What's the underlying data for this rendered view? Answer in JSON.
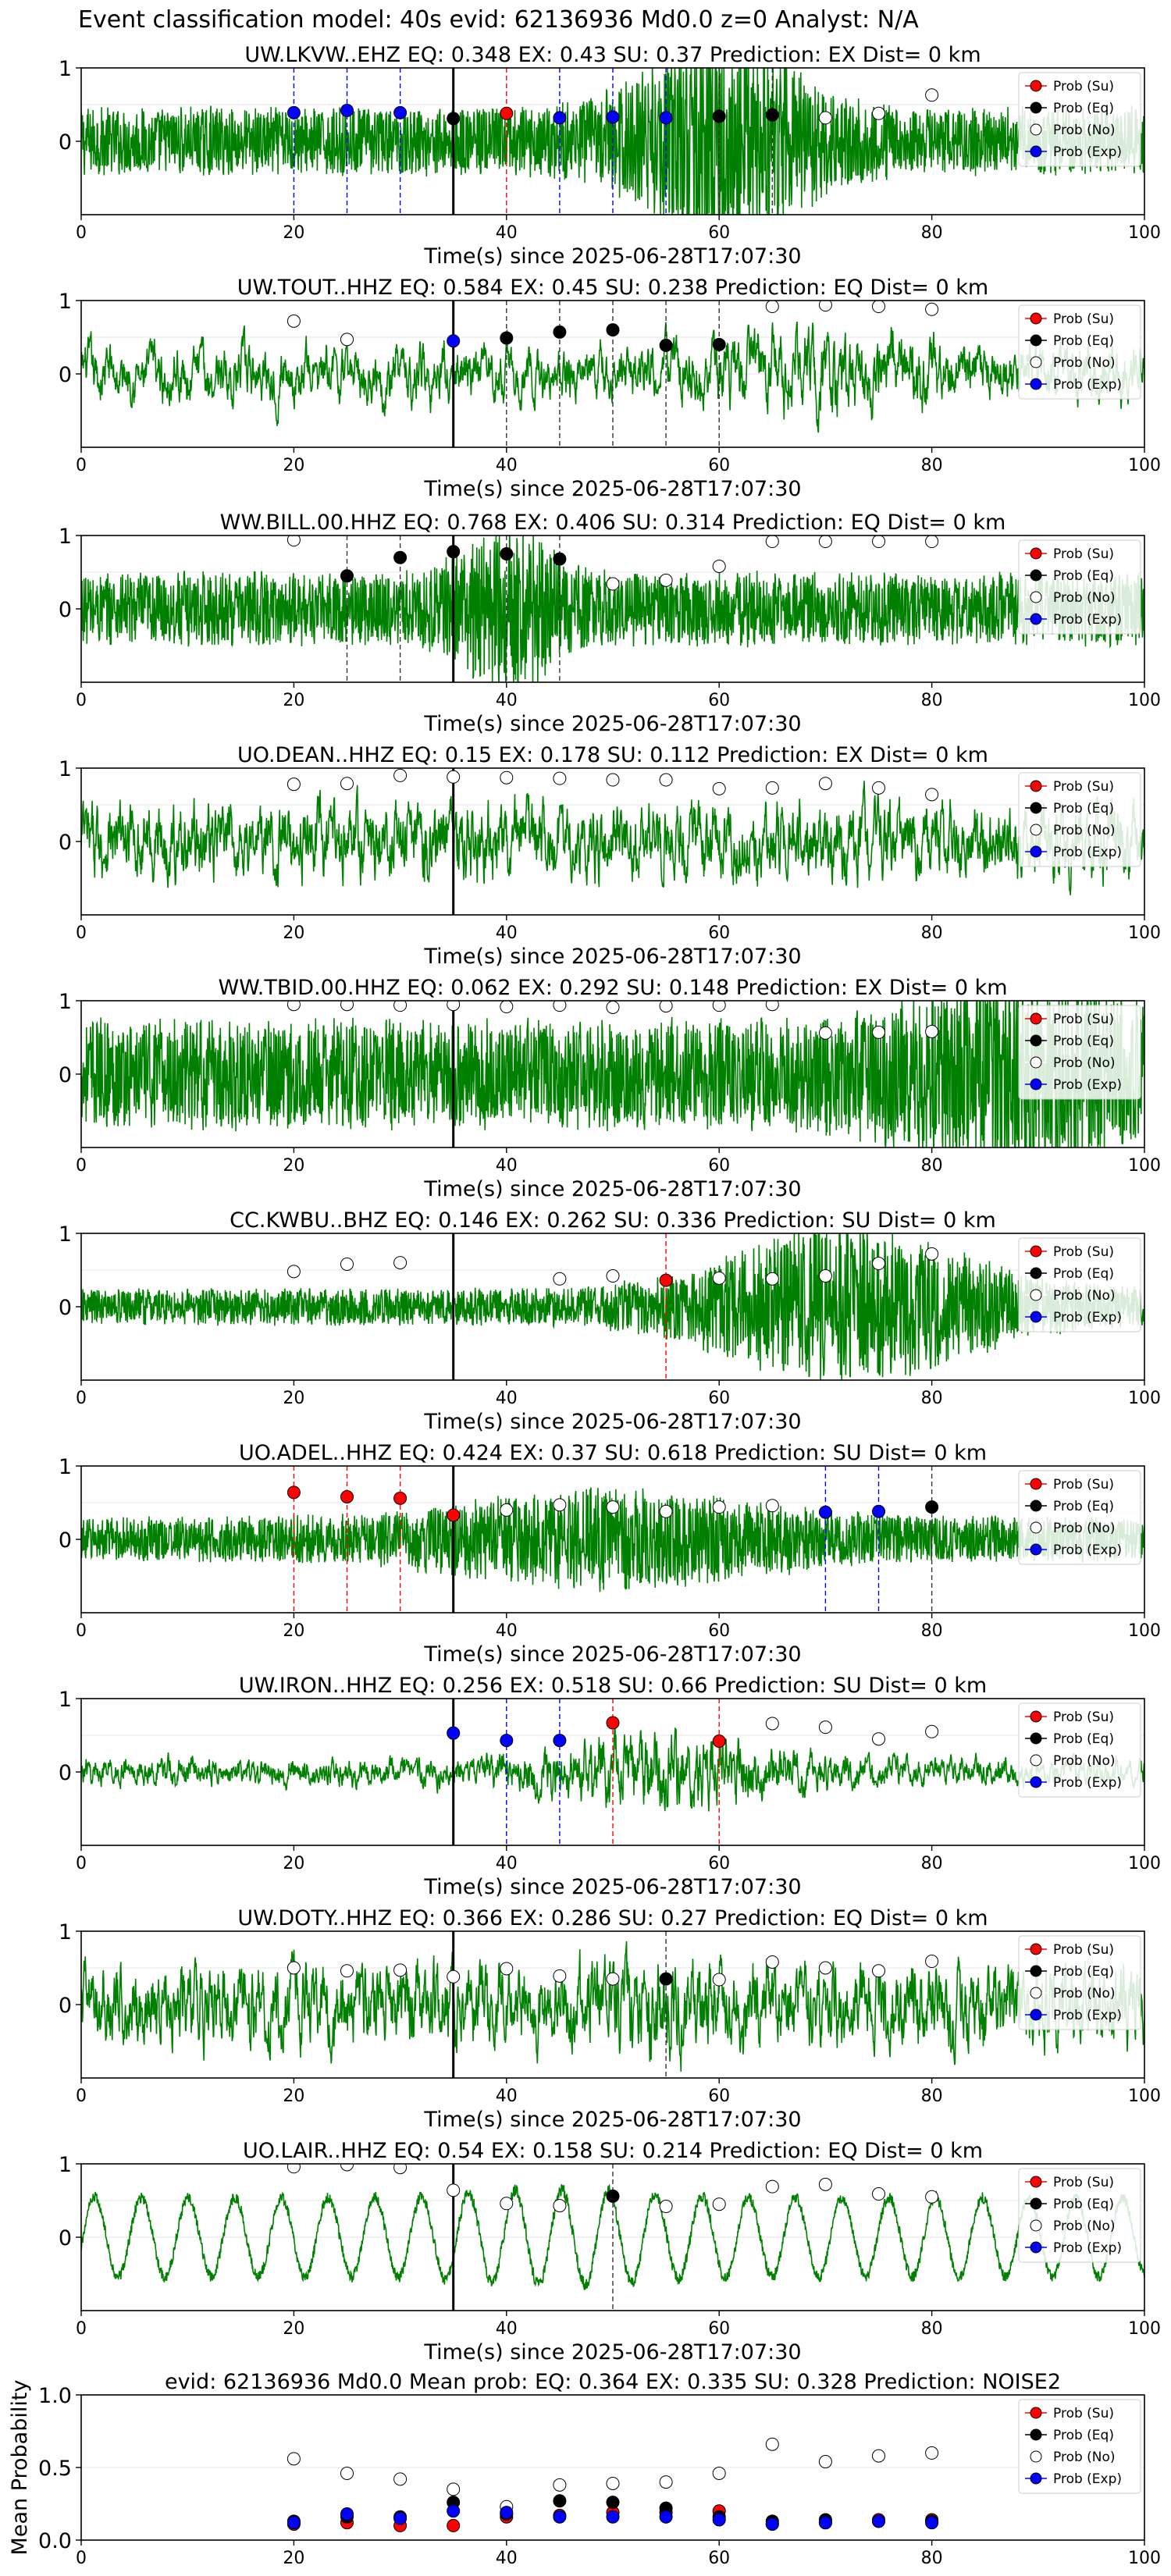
{
  "figure": {
    "suptitle": "Event classification model: 40s evid: 62136936 Md0.0 z=0 Analyst: N/A"
  },
  "colors": {
    "waveform": "#008000",
    "su": "#ff0000",
    "eq": "#000000",
    "no": "#ffffff",
    "exp": "#0000ff",
    "pick_line": "#000000"
  },
  "legend": {
    "placement": "right",
    "entries": [
      "Prob (Su)",
      "Prob (Eq)",
      "Prob (No)",
      "Prob (Exp)"
    ]
  },
  "chart_data": [
    {
      "type": "line",
      "title": "UW.LKVW..EHZ   EQ: 0.348   EX: 0.43   SU: 0.37   Prediction: EX    Dist= 0 km",
      "xlabel": "Time(s) since 2025-06-28T17:07:30",
      "ylabel": "",
      "xlim": [
        0,
        100
      ],
      "ylim": [
        -1,
        1
      ],
      "xticks": [
        "0",
        "20",
        "40",
        "60",
        "80",
        "100"
      ],
      "yticks": [
        "0",
        "1"
      ],
      "pick_time": 35,
      "waveform": {
        "amp": 0.28,
        "freq": 45,
        "burst_center": 60,
        "burst_width": 9,
        "burst_gain": 3.2,
        "smooth": 1
      },
      "probs": [
        {
          "t": 20,
          "v": 0.39,
          "cls": "exp"
        },
        {
          "t": 25,
          "v": 0.42,
          "cls": "exp"
        },
        {
          "t": 30,
          "v": 0.39,
          "cls": "exp"
        },
        {
          "t": 35,
          "v": 0.31,
          "cls": "eq"
        },
        {
          "t": 40,
          "v": 0.38,
          "cls": "su"
        },
        {
          "t": 45,
          "v": 0.32,
          "cls": "exp"
        },
        {
          "t": 50,
          "v": 0.33,
          "cls": "exp"
        },
        {
          "t": 55,
          "v": 0.32,
          "cls": "exp"
        },
        {
          "t": 60,
          "v": 0.34,
          "cls": "eq"
        },
        {
          "t": 65,
          "v": 0.36,
          "cls": "eq"
        },
        {
          "t": 70,
          "v": 0.32,
          "cls": "no"
        },
        {
          "t": 75,
          "v": 0.38,
          "cls": "no"
        },
        {
          "t": 80,
          "v": 0.63,
          "cls": "no"
        }
      ]
    },
    {
      "type": "line",
      "title": "UW.TOUT..HHZ   EQ: 0.584   EX: 0.45   SU: 0.238   Prediction: EQ    Dist= 0 km",
      "xlabel": "Time(s) since 2025-06-28T17:07:30",
      "ylabel": "",
      "xlim": [
        0,
        100
      ],
      "ylim": [
        -1,
        1
      ],
      "xticks": [
        "0",
        "20",
        "40",
        "60",
        "80",
        "100"
      ],
      "yticks": [
        "0",
        "1"
      ],
      "pick_time": 35,
      "waveform": {
        "amp": 0.55,
        "freq": 10,
        "burst_center": 70,
        "burst_width": 10,
        "burst_gain": 1.6,
        "smooth": 4
      },
      "probs": [
        {
          "t": 20,
          "v": 0.72,
          "cls": "no"
        },
        {
          "t": 25,
          "v": 0.47,
          "cls": "no"
        },
        {
          "t": 35,
          "v": 0.45,
          "cls": "exp"
        },
        {
          "t": 40,
          "v": 0.49,
          "cls": "eq"
        },
        {
          "t": 45,
          "v": 0.57,
          "cls": "eq"
        },
        {
          "t": 50,
          "v": 0.6,
          "cls": "eq"
        },
        {
          "t": 55,
          "v": 0.39,
          "cls": "eq"
        },
        {
          "t": 60,
          "v": 0.4,
          "cls": "eq"
        },
        {
          "t": 65,
          "v": 0.92,
          "cls": "no"
        },
        {
          "t": 70,
          "v": 0.94,
          "cls": "no"
        },
        {
          "t": 75,
          "v": 0.92,
          "cls": "no"
        },
        {
          "t": 80,
          "v": 0.88,
          "cls": "no"
        }
      ]
    },
    {
      "type": "line",
      "title": "WW.BILL.00.HHZ   EQ: 0.768   EX: 0.406   SU: 0.314   Prediction: EQ    Dist= 0 km",
      "xlabel": "Time(s) since 2025-06-28T17:07:30",
      "ylabel": "",
      "xlim": [
        0,
        100
      ],
      "ylim": [
        -1,
        1
      ],
      "xticks": [
        "0",
        "20",
        "40",
        "60",
        "80",
        "100"
      ],
      "yticks": [
        "0",
        "1"
      ],
      "pick_time": 35,
      "waveform": {
        "amp": 0.3,
        "freq": 35,
        "burst_center": 40,
        "burst_width": 5,
        "burst_gain": 2.4,
        "smooth": 1
      },
      "probs": [
        {
          "t": 20,
          "v": 0.94,
          "cls": "no"
        },
        {
          "t": 25,
          "v": 0.45,
          "cls": "eq"
        },
        {
          "t": 30,
          "v": 0.7,
          "cls": "eq"
        },
        {
          "t": 35,
          "v": 0.78,
          "cls": "eq"
        },
        {
          "t": 40,
          "v": 0.75,
          "cls": "eq"
        },
        {
          "t": 45,
          "v": 0.68,
          "cls": "eq"
        },
        {
          "t": 50,
          "v": 0.34,
          "cls": "no"
        },
        {
          "t": 55,
          "v": 0.39,
          "cls": "no"
        },
        {
          "t": 60,
          "v": 0.58,
          "cls": "no"
        },
        {
          "t": 65,
          "v": 0.92,
          "cls": "no"
        },
        {
          "t": 70,
          "v": 0.92,
          "cls": "no"
        },
        {
          "t": 75,
          "v": 0.92,
          "cls": "no"
        },
        {
          "t": 80,
          "v": 0.92,
          "cls": "no"
        }
      ]
    },
    {
      "type": "line",
      "title": "UO.DEAN..HHZ   EQ: 0.15   EX: 0.178   SU: 0.112   Prediction: EX    Dist= 0 km",
      "xlabel": "Time(s) since 2025-06-28T17:07:30",
      "ylabel": "",
      "xlim": [
        0,
        100
      ],
      "ylim": [
        -1,
        1
      ],
      "xticks": [
        "0",
        "20",
        "40",
        "60",
        "80",
        "100"
      ],
      "yticks": [
        "0",
        "1"
      ],
      "pick_time": 35,
      "waveform": {
        "amp": 0.6,
        "freq": 18,
        "burst_center": 35,
        "burst_width": 4,
        "burst_gain": 1.3,
        "smooth": 3
      },
      "probs": [
        {
          "t": 20,
          "v": 0.78,
          "cls": "no"
        },
        {
          "t": 25,
          "v": 0.79,
          "cls": "no"
        },
        {
          "t": 30,
          "v": 0.9,
          "cls": "no"
        },
        {
          "t": 35,
          "v": 0.88,
          "cls": "no"
        },
        {
          "t": 40,
          "v": 0.87,
          "cls": "no"
        },
        {
          "t": 45,
          "v": 0.86,
          "cls": "no"
        },
        {
          "t": 50,
          "v": 0.84,
          "cls": "no"
        },
        {
          "t": 55,
          "v": 0.84,
          "cls": "no"
        },
        {
          "t": 60,
          "v": 0.72,
          "cls": "no"
        },
        {
          "t": 65,
          "v": 0.73,
          "cls": "no"
        },
        {
          "t": 70,
          "v": 0.79,
          "cls": "no"
        },
        {
          "t": 75,
          "v": 0.73,
          "cls": "no"
        },
        {
          "t": 80,
          "v": 0.64,
          "cls": "no"
        }
      ]
    },
    {
      "type": "line",
      "title": "WW.TBID.00.HHZ   EQ: 0.062   EX: 0.292   SU: 0.148   Prediction: EX    Dist= 0 km",
      "xlabel": "Time(s) since 2025-06-28T17:07:30",
      "ylabel": "",
      "xlim": [
        0,
        100
      ],
      "ylim": [
        -1,
        1
      ],
      "xticks": [
        "0",
        "20",
        "40",
        "60",
        "80",
        "100"
      ],
      "yticks": [
        "0",
        "1"
      ],
      "pick_time": 35,
      "waveform": {
        "amp": 0.45,
        "freq": 60,
        "burst_center": 88,
        "burst_width": 12,
        "burst_gain": 1.9,
        "smooth": 1
      },
      "probs": [
        {
          "t": 20,
          "v": 0.95,
          "cls": "no"
        },
        {
          "t": 25,
          "v": 0.95,
          "cls": "no"
        },
        {
          "t": 30,
          "v": 0.94,
          "cls": "no"
        },
        {
          "t": 35,
          "v": 0.95,
          "cls": "no"
        },
        {
          "t": 40,
          "v": 0.92,
          "cls": "no"
        },
        {
          "t": 45,
          "v": 0.94,
          "cls": "no"
        },
        {
          "t": 50,
          "v": 0.91,
          "cls": "no"
        },
        {
          "t": 55,
          "v": 0.93,
          "cls": "no"
        },
        {
          "t": 60,
          "v": 0.94,
          "cls": "no"
        },
        {
          "t": 65,
          "v": 0.95,
          "cls": "no"
        },
        {
          "t": 70,
          "v": 0.56,
          "cls": "no"
        },
        {
          "t": 75,
          "v": 0.57,
          "cls": "no"
        },
        {
          "t": 80,
          "v": 0.58,
          "cls": "no"
        }
      ]
    },
    {
      "type": "line",
      "title": "CC.KWBU..BHZ   EQ: 0.146   EX: 0.262   SU: 0.336   Prediction: SU    Dist= 0 km",
      "xlabel": "Time(s) since 2025-06-28T17:07:30",
      "ylabel": "",
      "xlim": [
        0,
        100
      ],
      "ylim": [
        -1,
        1
      ],
      "xticks": [
        "0",
        "20",
        "40",
        "60",
        "80",
        "100"
      ],
      "yticks": [
        "0",
        "1"
      ],
      "pick_time": 35,
      "waveform": {
        "amp": 0.15,
        "freq": 55,
        "burst_center": 72,
        "burst_width": 14,
        "burst_gain": 4.5,
        "smooth": 1
      },
      "probs": [
        {
          "t": 20,
          "v": 0.48,
          "cls": "no"
        },
        {
          "t": 25,
          "v": 0.58,
          "cls": "no"
        },
        {
          "t": 30,
          "v": 0.6,
          "cls": "no"
        },
        {
          "t": 45,
          "v": 0.38,
          "cls": "no"
        },
        {
          "t": 50,
          "v": 0.42,
          "cls": "no"
        },
        {
          "t": 55,
          "v": 0.36,
          "cls": "su"
        },
        {
          "t": 60,
          "v": 0.39,
          "cls": "no"
        },
        {
          "t": 65,
          "v": 0.38,
          "cls": "no"
        },
        {
          "t": 70,
          "v": 0.42,
          "cls": "no"
        },
        {
          "t": 75,
          "v": 0.59,
          "cls": "no"
        },
        {
          "t": 80,
          "v": 0.72,
          "cls": "no"
        }
      ]
    },
    {
      "type": "line",
      "title": "UO.ADEL..HHZ   EQ: 0.424   EX: 0.37   SU: 0.618   Prediction: SU    Dist= 0 km",
      "xlabel": "Time(s) since 2025-06-28T17:07:30",
      "ylabel": "",
      "xlim": [
        0,
        100
      ],
      "ylim": [
        -1,
        1
      ],
      "xticks": [
        "0",
        "20",
        "40",
        "60",
        "80",
        "100"
      ],
      "yticks": [
        "0",
        "1"
      ],
      "pick_time": 35,
      "waveform": {
        "amp": 0.18,
        "freq": 60,
        "burst_center": 50,
        "burst_width": 18,
        "burst_gain": 2.3,
        "smooth": 1
      },
      "probs": [
        {
          "t": 20,
          "v": 0.64,
          "cls": "su"
        },
        {
          "t": 25,
          "v": 0.58,
          "cls": "su"
        },
        {
          "t": 30,
          "v": 0.56,
          "cls": "su"
        },
        {
          "t": 35,
          "v": 0.33,
          "cls": "su"
        },
        {
          "t": 40,
          "v": 0.4,
          "cls": "no"
        },
        {
          "t": 45,
          "v": 0.47,
          "cls": "no"
        },
        {
          "t": 50,
          "v": 0.44,
          "cls": "no"
        },
        {
          "t": 55,
          "v": 0.38,
          "cls": "no"
        },
        {
          "t": 60,
          "v": 0.44,
          "cls": "no"
        },
        {
          "t": 65,
          "v": 0.46,
          "cls": "no"
        },
        {
          "t": 70,
          "v": 0.37,
          "cls": "exp"
        },
        {
          "t": 75,
          "v": 0.38,
          "cls": "exp"
        },
        {
          "t": 80,
          "v": 0.44,
          "cls": "eq"
        }
      ]
    },
    {
      "type": "line",
      "title": "UW.IRON..HHZ   EQ: 0.256   EX: 0.518   SU: 0.66   Prediction: SU    Dist= 0 km",
      "xlabel": "Time(s) since 2025-06-28T17:07:30",
      "ylabel": "",
      "xlim": [
        0,
        100
      ],
      "ylim": [
        -1,
        1
      ],
      "xticks": [
        "0",
        "20",
        "40",
        "60",
        "80",
        "100"
      ],
      "yticks": [
        "0",
        "1"
      ],
      "pick_time": 35,
      "waveform": {
        "amp": 0.22,
        "freq": 16,
        "burst_center": 55,
        "burst_width": 12,
        "burst_gain": 3.0,
        "smooth": 3
      },
      "probs": [
        {
          "t": 35,
          "v": 0.53,
          "cls": "exp"
        },
        {
          "t": 40,
          "v": 0.43,
          "cls": "exp"
        },
        {
          "t": 45,
          "v": 0.43,
          "cls": "exp"
        },
        {
          "t": 50,
          "v": 0.67,
          "cls": "su"
        },
        {
          "t": 60,
          "v": 0.42,
          "cls": "su"
        },
        {
          "t": 65,
          "v": 0.66,
          "cls": "no"
        },
        {
          "t": 70,
          "v": 0.61,
          "cls": "no"
        },
        {
          "t": 75,
          "v": 0.45,
          "cls": "no"
        },
        {
          "t": 80,
          "v": 0.55,
          "cls": "no"
        }
      ]
    },
    {
      "type": "line",
      "title": "UW.DOTY..HHZ   EQ: 0.366   EX: 0.286   SU: 0.27   Prediction: EQ    Dist= 0 km",
      "xlabel": "Time(s) since 2025-06-28T17:07:30",
      "ylabel": "",
      "xlim": [
        0,
        100
      ],
      "ylim": [
        -1,
        1
      ],
      "xticks": [
        "0",
        "20",
        "40",
        "60",
        "80",
        "100"
      ],
      "yticks": [
        "0",
        "1"
      ],
      "pick_time": 35,
      "waveform": {
        "amp": 0.65,
        "freq": 14,
        "burst_center": 55,
        "burst_width": 6,
        "burst_gain": 1.2,
        "smooth": 3
      },
      "probs": [
        {
          "t": 20,
          "v": 0.5,
          "cls": "no"
        },
        {
          "t": 25,
          "v": 0.46,
          "cls": "no"
        },
        {
          "t": 30,
          "v": 0.47,
          "cls": "no"
        },
        {
          "t": 35,
          "v": 0.38,
          "cls": "no"
        },
        {
          "t": 40,
          "v": 0.49,
          "cls": "no"
        },
        {
          "t": 45,
          "v": 0.39,
          "cls": "no"
        },
        {
          "t": 50,
          "v": 0.35,
          "cls": "no"
        },
        {
          "t": 55,
          "v": 0.35,
          "cls": "eq"
        },
        {
          "t": 60,
          "v": 0.34,
          "cls": "no"
        },
        {
          "t": 65,
          "v": 0.58,
          "cls": "no"
        },
        {
          "t": 70,
          "v": 0.5,
          "cls": "no"
        },
        {
          "t": 75,
          "v": 0.46,
          "cls": "no"
        },
        {
          "t": 80,
          "v": 0.59,
          "cls": "no"
        }
      ]
    },
    {
      "type": "line",
      "title": "UO.LAIR..HHZ   EQ: 0.54   EX: 0.158   SU: 0.214   Prediction: EQ    Dist= 0 km",
      "xlabel": "Time(s) since 2025-06-28T17:07:30",
      "ylabel": "",
      "xlim": [
        0,
        100
      ],
      "ylim": [
        -1,
        1
      ],
      "xticks": [
        "0",
        "20",
        "40",
        "60",
        "80",
        "100"
      ],
      "yticks": [
        "0",
        "1"
      ],
      "pick_time": 35,
      "waveform": {
        "amp": 0.6,
        "freq": 1.3,
        "burst_center": 45,
        "burst_width": 10,
        "burst_gain": 1.2,
        "smooth": 6,
        "sine": true
      },
      "probs": [
        {
          "t": 20,
          "v": 0.96,
          "cls": "no"
        },
        {
          "t": 25,
          "v": 0.99,
          "cls": "no"
        },
        {
          "t": 30,
          "v": 0.95,
          "cls": "no"
        },
        {
          "t": 35,
          "v": 0.64,
          "cls": "no"
        },
        {
          "t": 40,
          "v": 0.46,
          "cls": "no"
        },
        {
          "t": 45,
          "v": 0.43,
          "cls": "no"
        },
        {
          "t": 50,
          "v": 0.56,
          "cls": "eq"
        },
        {
          "t": 55,
          "v": 0.42,
          "cls": "no"
        },
        {
          "t": 60,
          "v": 0.45,
          "cls": "no"
        },
        {
          "t": 65,
          "v": 0.69,
          "cls": "no"
        },
        {
          "t": 70,
          "v": 0.72,
          "cls": "no"
        },
        {
          "t": 75,
          "v": 0.59,
          "cls": "no"
        },
        {
          "t": 80,
          "v": 0.55,
          "cls": "no"
        }
      ]
    },
    {
      "type": "scatter",
      "title": "evid: 62136936  Md0.0   Mean prob:   EQ: 0.364  EX: 0.335  SU: 0.328   Prediction: NOISE2",
      "xlabel": "",
      "ylabel": "Mean Probability",
      "xlim": [
        0,
        100
      ],
      "ylim": [
        0,
        1
      ],
      "xticks": [
        "0",
        "20",
        "40",
        "60",
        "80",
        "100"
      ],
      "yticks": [
        "0.0",
        "0.5",
        "1.0"
      ],
      "x": [
        20,
        25,
        30,
        35,
        40,
        45,
        50,
        55,
        60,
        65,
        70,
        75,
        80
      ],
      "series": [
        {
          "name": "Prob (Su)",
          "cls": "su",
          "values": [
            0.11,
            0.12,
            0.1,
            0.1,
            0.16,
            0.17,
            0.19,
            0.19,
            0.2,
            0.11,
            0.12,
            0.14,
            0.14
          ]
        },
        {
          "name": "Prob (Eq)",
          "cls": "eq",
          "values": [
            0.13,
            0.16,
            0.16,
            0.26,
            0.18,
            0.27,
            0.26,
            0.22,
            0.16,
            0.13,
            0.14,
            0.13,
            0.13
          ]
        },
        {
          "name": "Prob (No)",
          "cls": "no",
          "values": [
            0.56,
            0.46,
            0.42,
            0.35,
            0.23,
            0.38,
            0.39,
            0.4,
            0.46,
            0.66,
            0.54,
            0.58,
            0.6
          ]
        },
        {
          "name": "Prob (Exp)",
          "cls": "exp",
          "values": [
            0.12,
            0.18,
            0.15,
            0.2,
            0.19,
            0.16,
            0.16,
            0.16,
            0.14,
            0.11,
            0.12,
            0.13,
            0.12
          ]
        }
      ]
    }
  ]
}
